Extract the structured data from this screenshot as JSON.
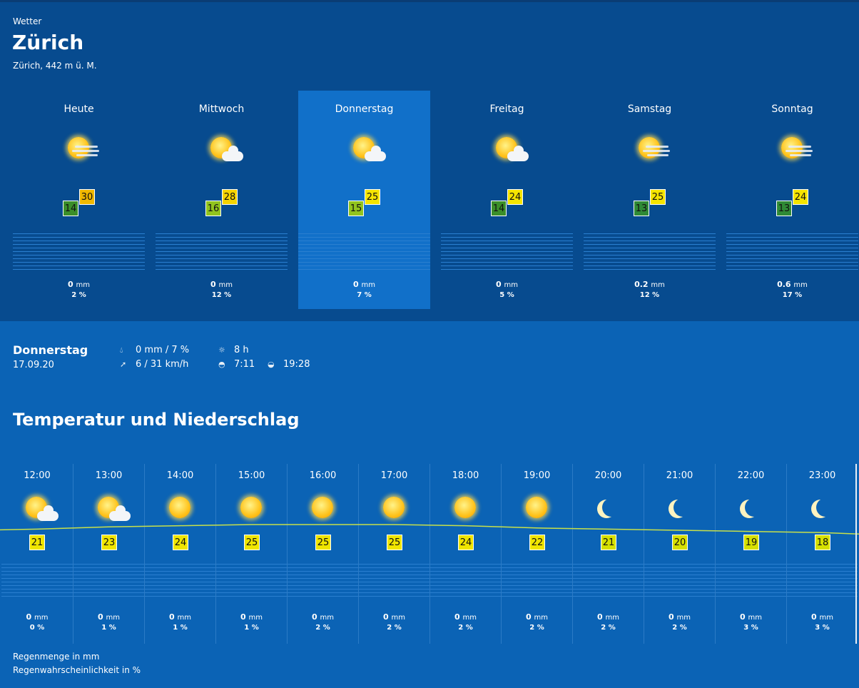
{
  "header": {
    "kicker": "Wetter",
    "city": "Zürich",
    "altitude": "Zürich, 442 m ü. M."
  },
  "days": [
    {
      "name": "Heute",
      "icon": "sun-wind",
      "min": "14",
      "max": "30",
      "min_color": "#3b8f2a",
      "max_color": "#f0b800",
      "rain": "0",
      "unit": "mm",
      "prob": "2 %",
      "selected": false
    },
    {
      "name": "Mittwoch",
      "icon": "sun-cloud",
      "min": "16",
      "max": "28",
      "min_color": "#92c41e",
      "max_color": "#f5d300",
      "rain": "0",
      "unit": "mm",
      "prob": "12 %",
      "selected": false
    },
    {
      "name": "Donnerstag",
      "icon": "sun-cloud",
      "min": "15",
      "max": "25",
      "min_color": "#92c41e",
      "max_color": "#f5e400",
      "rain": "0",
      "unit": "mm",
      "prob": "7 %",
      "selected": true
    },
    {
      "name": "Freitag",
      "icon": "sun-cloud",
      "min": "14",
      "max": "24",
      "min_color": "#3b8f2a",
      "max_color": "#f5e400",
      "rain": "0",
      "unit": "mm",
      "prob": "5 %",
      "selected": false
    },
    {
      "name": "Samstag",
      "icon": "sun-wind",
      "min": "13",
      "max": "25",
      "min_color": "#2f8a36",
      "max_color": "#f5e400",
      "rain": "0.2",
      "unit": "mm",
      "prob": "12 %",
      "selected": false
    },
    {
      "name": "Sonntag",
      "icon": "sun-wind",
      "min": "13",
      "max": "24",
      "min_color": "#2f8a36",
      "max_color": "#f5e400",
      "rain": "0.6",
      "unit": "mm",
      "prob": "17 %",
      "selected": false
    }
  ],
  "detail": {
    "day": "Donnerstag",
    "date": "17.09.20",
    "precip": "0 mm / 7 %",
    "wind": "6 / 31 km/h",
    "sunshine": "8 h",
    "sunrise": "7:11",
    "sunset": "19:28"
  },
  "section_title": "Temperatur und Niederschlag",
  "hours": [
    {
      "time": "12:00",
      "icon": "sun-cloud",
      "temp": 21,
      "rain": "0",
      "prob": "0 %"
    },
    {
      "time": "13:00",
      "icon": "sun-cloud",
      "temp": 23,
      "rain": "0",
      "prob": "1 %"
    },
    {
      "time": "14:00",
      "icon": "sun",
      "temp": 24,
      "rain": "0",
      "prob": "1 %"
    },
    {
      "time": "15:00",
      "icon": "sun",
      "temp": 25,
      "rain": "0",
      "prob": "1 %"
    },
    {
      "time": "16:00",
      "icon": "sun",
      "temp": 25,
      "rain": "0",
      "prob": "2 %"
    },
    {
      "time": "17:00",
      "icon": "sun",
      "temp": 25,
      "rain": "0",
      "prob": "2 %"
    },
    {
      "time": "18:00",
      "icon": "sun",
      "temp": 24,
      "rain": "0",
      "prob": "2 %"
    },
    {
      "time": "19:00",
      "icon": "sun",
      "temp": 22,
      "rain": "0",
      "prob": "2 %"
    },
    {
      "time": "20:00",
      "icon": "moon",
      "temp": 21,
      "rain": "0",
      "prob": "2 %"
    },
    {
      "time": "21:00",
      "icon": "moon",
      "temp": 20,
      "rain": "0",
      "prob": "2 %"
    },
    {
      "time": "22:00",
      "icon": "moon",
      "temp": 19,
      "rain": "0",
      "prob": "3 %"
    },
    {
      "time": "23:00",
      "icon": "moon",
      "temp": 18,
      "rain": "0",
      "prob": "3 %"
    }
  ],
  "unit": "mm",
  "legend": {
    "rain": "Regenmenge in mm",
    "prob": "Regenwahrscheinlichkeit in %"
  },
  "colors": {
    "header_bg": "#074b8f",
    "body_bg": "#0b63b5",
    "selected_day": "#1170c9",
    "hour_temp": "#f0e500",
    "temp_line": "#c8e04a"
  }
}
